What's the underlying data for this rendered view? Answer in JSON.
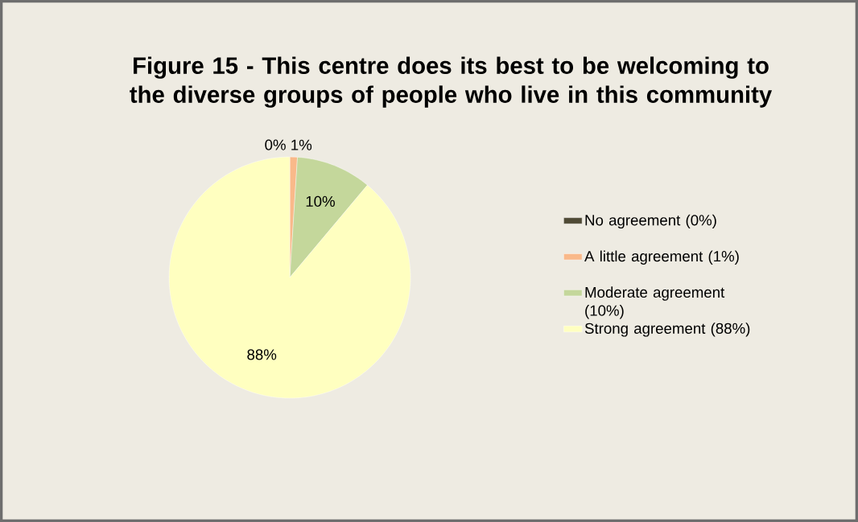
{
  "chart_data": {
    "type": "pie",
    "title": "Figure 15 - This centre does its best to be welcoming to the diverse groups of people who live in this community",
    "categories": [
      "No agreement (0%)",
      "A little agreement (1%)",
      "Moderate agreement (10%)",
      "Strong agreement (88%)"
    ],
    "values": [
      0,
      1,
      10,
      88
    ],
    "value_labels": [
      "0%",
      "1%",
      "10%",
      "88%"
    ],
    "colors": [
      "#4f4a35",
      "#f9b98a",
      "#c4d79b",
      "#ffffc0"
    ],
    "legend": "right"
  }
}
